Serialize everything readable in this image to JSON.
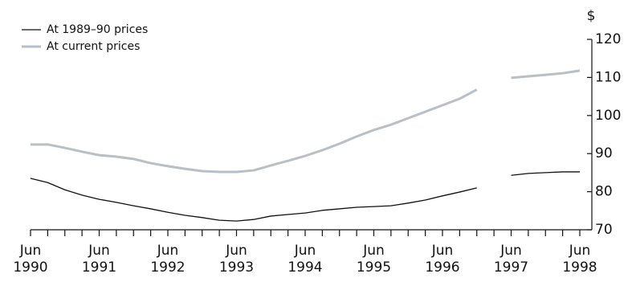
{
  "chart_data": {
    "type": "line",
    "ylabel": "$",
    "categories": [
      "Jun 1990",
      null,
      null,
      null,
      "Jun 1991",
      null,
      null,
      null,
      "Jun 1992",
      null,
      null,
      null,
      "Jun 1993",
      null,
      null,
      null,
      "Jun 1994",
      null,
      null,
      null,
      "Jun 1995",
      null,
      null,
      null,
      "Jun 1996",
      null,
      null,
      null,
      "Jun 1997",
      null,
      null,
      null,
      "Jun 1998"
    ],
    "series": [
      {
        "name": "At 1989–90 prices",
        "color": "#111111",
        "width": 1.3,
        "values": [
          83.5,
          82.4,
          80.5,
          79.1,
          78.0,
          77.2,
          76.3,
          75.5,
          74.6,
          73.8,
          73.2,
          72.5,
          72.3,
          72.7,
          73.6,
          74.0,
          74.4,
          75.1,
          75.5,
          75.9,
          76.1,
          76.3,
          77.0,
          77.8,
          78.9,
          79.9,
          81.0,
          null,
          84.3,
          84.8,
          85.0,
          85.2,
          85.2
        ]
      },
      {
        "name": "At current prices",
        "color": "#b9bfc6",
        "width": 3,
        "values": [
          92.4,
          92.4,
          91.5,
          90.5,
          89.6,
          89.2,
          88.6,
          87.5,
          86.7,
          86.0,
          85.4,
          85.2,
          85.2,
          85.6,
          86.9,
          88.1,
          89.4,
          90.9,
          92.6,
          94.5,
          96.2,
          97.6,
          99.3,
          101.0,
          102.7,
          104.4,
          106.8,
          null,
          109.9,
          110.3,
          110.7,
          111.1,
          111.8
        ]
      }
    ],
    "ylim": [
      70,
      120
    ],
    "yticks": [
      70,
      80,
      90,
      100,
      110,
      120
    ]
  }
}
